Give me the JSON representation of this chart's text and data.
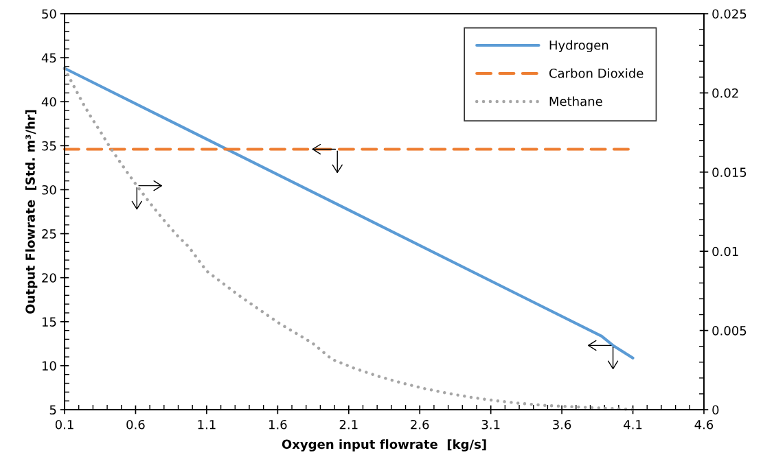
{
  "chart_data": {
    "type": "line",
    "xlabel": "Oxygen input flowrate  [kg/s]",
    "ylabel": "Output Flowrate  [Std. m³/hr]",
    "xlim": [
      0.1,
      4.6
    ],
    "xticks": [
      0.1,
      0.6,
      1.1,
      1.6,
      2.1,
      2.6,
      3.1,
      3.6,
      4.1,
      4.6
    ],
    "ylim": [
      5,
      50
    ],
    "yticks": [
      5,
      10,
      15,
      20,
      25,
      30,
      35,
      40,
      45,
      50
    ],
    "y2lim": [
      0,
      0.025
    ],
    "y2ticks": [
      0,
      0.005,
      0.01,
      0.015,
      0.02,
      0.025
    ],
    "legend": "top right",
    "grid": false,
    "series": [
      {
        "name": "Hydrogen",
        "color": "#5b9bd5",
        "line_style": "solid",
        "x": [
          0.1,
          3.88,
          3.96,
          4.1
        ],
        "values": [
          43.8,
          13.35,
          12.3,
          10.87
        ]
      },
      {
        "name": "Carbon Dioxide",
        "color": "#ed7d31",
        "line_style": "dashed",
        "x": [
          0.1,
          4.1
        ],
        "values": [
          34.6,
          34.6
        ]
      },
      {
        "name": "Methane",
        "color": "#a5a5a5",
        "line_style": "dotted",
        "axis": "y2",
        "x": [
          0.1,
          0.181,
          0.234,
          0.293,
          0.355,
          0.414,
          0.478,
          0.543,
          0.609,
          0.679,
          0.749,
          0.82,
          0.896,
          0.975,
          1.1,
          1.337,
          1.603,
          1.845,
          1.982,
          2.14,
          2.304,
          2.468,
          2.634,
          2.8,
          2.969,
          3.138,
          3.307,
          3.478,
          3.649,
          3.82,
          3.996,
          4.1
        ],
        "values": [
          0.02153,
          0.02016,
          0.01927,
          0.01838,
          0.01752,
          0.01665,
          0.0158,
          0.01496,
          0.01414,
          0.01331,
          0.01251,
          0.01174,
          0.01097,
          0.01027,
          0.00875,
          0.00715,
          0.0055,
          0.0042,
          0.00318,
          0.00261,
          0.00212,
          0.0017,
          0.00133,
          0.00103,
          0.00077,
          0.00056,
          0.0004,
          0.00027,
          0.00019,
          0.00012,
          6e-05,
          0
        ]
      }
    ]
  }
}
